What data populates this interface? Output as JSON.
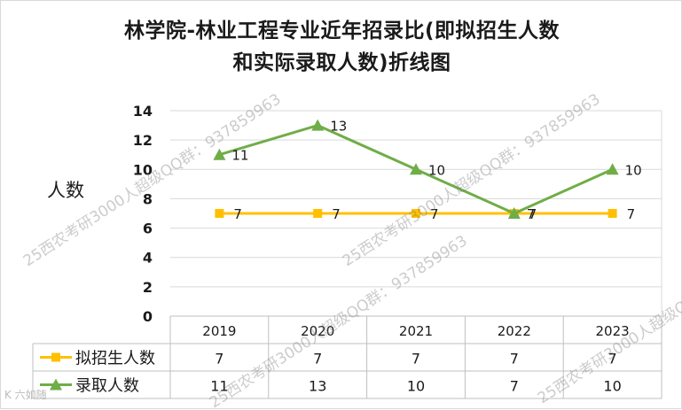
{
  "chart_data": {
    "type": "line",
    "title_line1": "林学院-林业工程专业近年招录比(即拟招生人数",
    "title_line2": "和实际录取人数)折线图",
    "ylabel": "人数",
    "categories": [
      "2019",
      "2020",
      "2021",
      "2022",
      "2023"
    ],
    "series": [
      {
        "name": "拟招生人数",
        "values": [
          7,
          7,
          7,
          7,
          7
        ],
        "color": "#ffc000",
        "marker": "square"
      },
      {
        "name": "录取人数",
        "values": [
          11,
          13,
          10,
          7,
          10
        ],
        "color": "#70ad47",
        "marker": "triangle"
      }
    ],
    "yticks": [
      "0",
      "2",
      "4",
      "6",
      "8",
      "10",
      "12",
      "14"
    ],
    "ylim": [
      0,
      14
    ],
    "grid": true,
    "legend": "data-table"
  },
  "watermark": {
    "text": "25西农考研3000人超级QQ群：937859963",
    "logo": "K 六如随"
  }
}
